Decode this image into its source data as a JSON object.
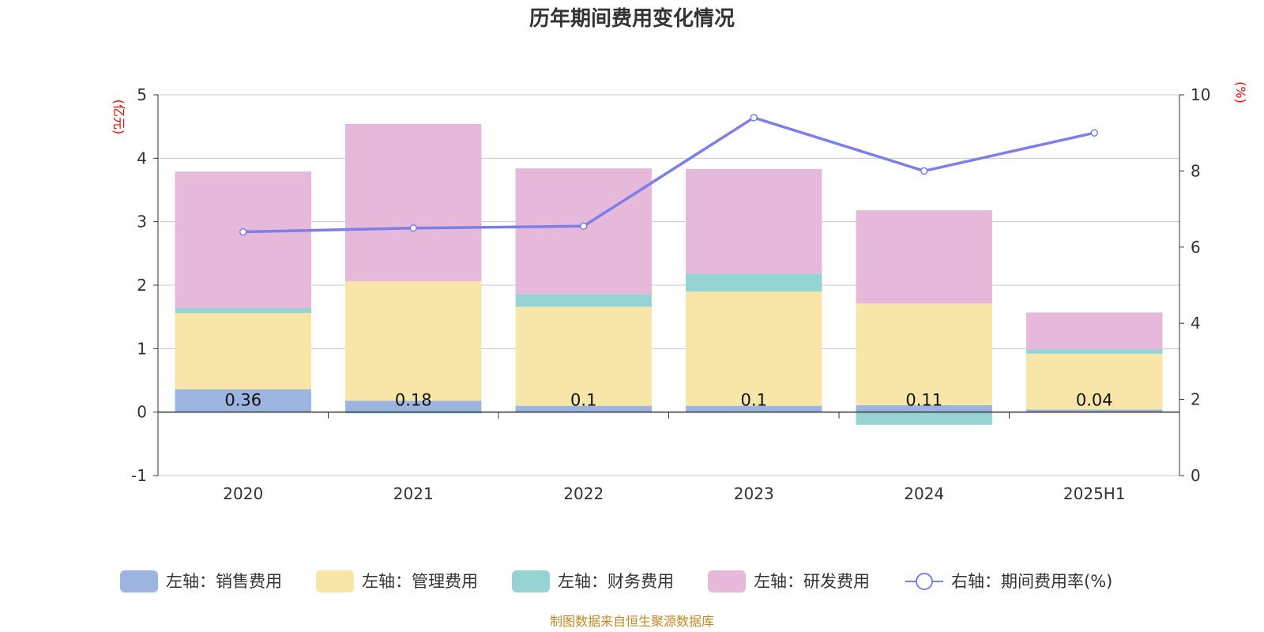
{
  "chart_data": {
    "type": "bar",
    "title": "历年期间费用变化情况",
    "categories": [
      "2020",
      "2021",
      "2022",
      "2023",
      "2024",
      "2025H1"
    ],
    "left_axis": {
      "unit": "(亿元)",
      "min": -1,
      "max": 5,
      "ticks": [
        -1,
        0,
        1,
        2,
        3,
        4,
        5
      ]
    },
    "right_axis": {
      "unit": "(%)",
      "min": 0,
      "max": 10,
      "ticks": [
        0,
        2,
        4,
        6,
        8,
        10
      ]
    },
    "series": [
      {
        "name": "左轴：销售费用",
        "color": "#9bb5e0",
        "values": [
          0.36,
          0.18,
          0.1,
          0.1,
          0.11,
          0.04
        ],
        "labels": [
          "0.36",
          "0.18",
          "0.1",
          "0.1",
          "0.11",
          "0.04"
        ]
      },
      {
        "name": "左轴：管理费用",
        "color": "#f8e6a8",
        "values": [
          1.2,
          1.88,
          1.56,
          1.8,
          1.6,
          0.88
        ]
      },
      {
        "name": "左轴：财务费用",
        "color": "#96d4d4",
        "values": [
          0.08,
          -0.02,
          0.2,
          0.28,
          -0.2,
          0.07
        ]
      },
      {
        "name": "左轴：研发费用",
        "color": "#e6b8d9",
        "values": [
          2.15,
          2.48,
          1.98,
          1.65,
          1.47,
          0.58
        ]
      }
    ],
    "line": {
      "name": "右轴：期间费用率(%)",
      "color": "#7b7fe8",
      "values": [
        6.4,
        6.5,
        6.55,
        9.4,
        8.0,
        9.0
      ]
    }
  },
  "footer": "制图数据来自恒生聚源数据库"
}
